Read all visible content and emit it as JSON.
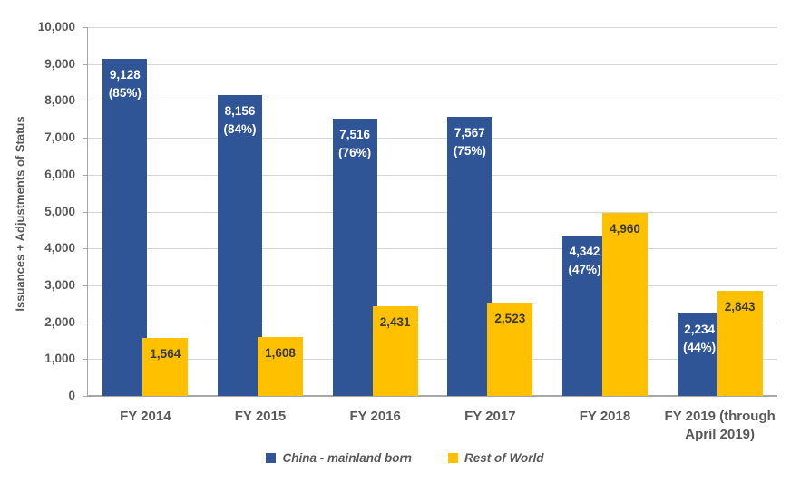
{
  "chart_data": {
    "type": "bar",
    "title": "",
    "xlabel": "",
    "ylabel": "Issuances + Adjustments of Status",
    "ylim": [
      0,
      10000
    ],
    "ytick_step": 1000,
    "ytick_labels": [
      "0",
      "1,000",
      "2,000",
      "3,000",
      "4,000",
      "5,000",
      "6,000",
      "7,000",
      "8,000",
      "9,000",
      "10,000"
    ],
    "grid": true,
    "legend_position": "bottom",
    "categories": [
      "FY 2014",
      "FY 2015",
      "FY 2016",
      "FY 2017",
      "FY 2018",
      "FY 2019 (through April 2019)"
    ],
    "series": [
      {
        "name": "China - mainland born",
        "color": "#2F5597",
        "label_color": "#ffffff",
        "values": [
          9128,
          8156,
          7516,
          7567,
          4342,
          2234
        ],
        "value_labels": [
          "9,128",
          "8,156",
          "7,516",
          "7,567",
          "4,342",
          "2,234"
        ],
        "pct_labels": [
          "(85%)",
          "(84%)",
          "(76%)",
          "(75%)",
          "(47%)",
          "(44%)"
        ]
      },
      {
        "name": "Rest of World",
        "color": "#FFC000",
        "label_color": "#3b3b3b",
        "values": [
          1564,
          1608,
          2431,
          2523,
          4960,
          2843
        ],
        "value_labels": [
          "1,564",
          "1,608",
          "2,431",
          "2,523",
          "4,960",
          "2,843"
        ],
        "pct_labels": null
      }
    ]
  }
}
